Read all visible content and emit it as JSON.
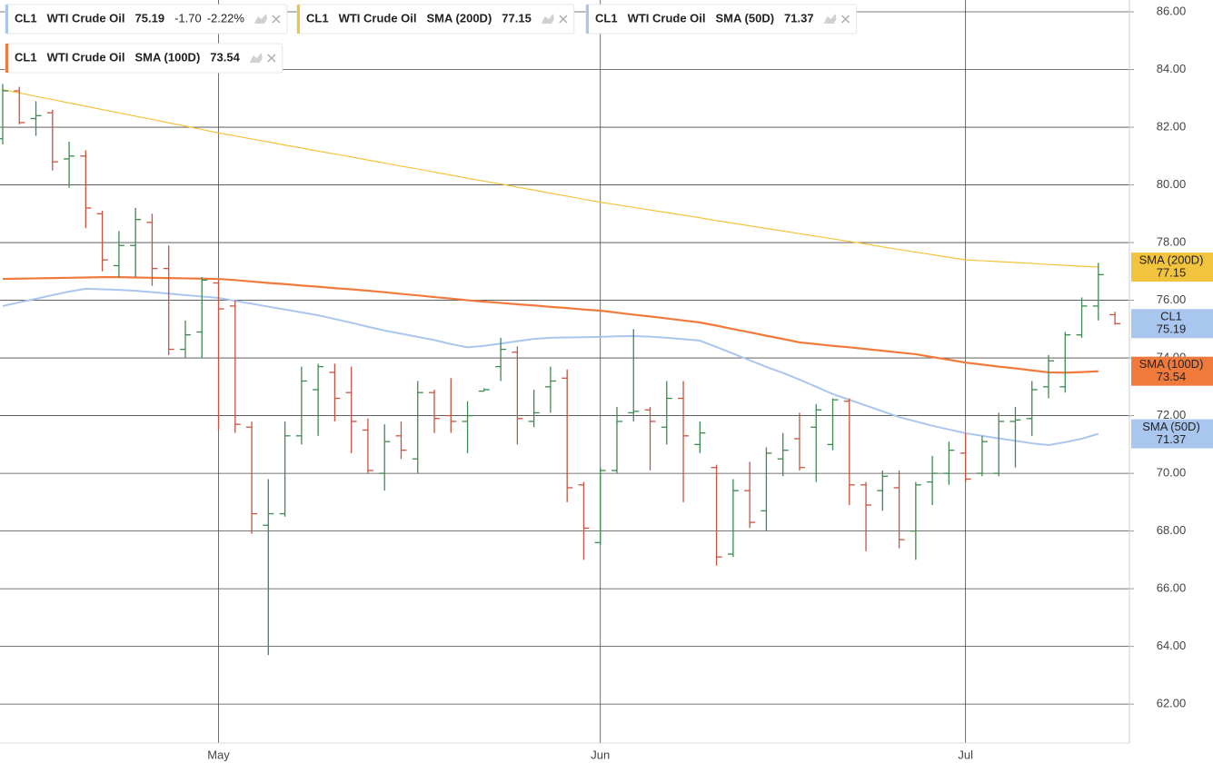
{
  "chart_data": {
    "type": "ohlc",
    "symbol": "CL1",
    "name": "WTI Crude Oil",
    "change": {
      "value": -1.7,
      "label": "-1.70"
    },
    "change_percent": {
      "value": -2.22,
      "label": "-2.22%"
    },
    "categories": [
      null,
      null,
      null,
      null,
      null,
      null,
      null,
      null,
      null,
      null,
      null,
      null,
      null,
      "May",
      null,
      null,
      null,
      null,
      null,
      null,
      null,
      null,
      null,
      null,
      null,
      null,
      null,
      null,
      null,
      null,
      null,
      null,
      null,
      null,
      null,
      null,
      "Jun",
      null,
      null,
      null,
      null,
      null,
      null,
      null,
      null,
      null,
      null,
      null,
      null,
      null,
      null,
      null,
      null,
      null,
      null,
      null,
      null,
      null,
      "Jul",
      null,
      null,
      null,
      null,
      null,
      null,
      null,
      null,
      null
    ],
    "ylim": [
      60.65,
      86.41
    ],
    "yticks": [
      {
        "value": 62,
        "label": "62.00"
      },
      {
        "value": 64,
        "label": "64.00"
      },
      {
        "value": 66,
        "label": "66.00"
      },
      {
        "value": 68,
        "label": "68.00"
      },
      {
        "value": 70,
        "label": "70.00"
      },
      {
        "value": 72,
        "label": "72.00"
      },
      {
        "value": 74,
        "label": "74.00"
      },
      {
        "value": 76,
        "label": "76.00"
      },
      {
        "value": 78,
        "label": "78.00"
      },
      {
        "value": 80,
        "label": "80.00"
      },
      {
        "value": 82,
        "label": "82.00"
      },
      {
        "value": 84,
        "label": "84.00"
      },
      {
        "value": 86,
        "label": "86.00"
      }
    ],
    "grid": true,
    "series": [
      {
        "name": "CL1",
        "kind": "ohlc",
        "color": "#a9c6ee",
        "up_color": "#3d8a4f",
        "down_color": "#c9533f",
        "open": [
          81.6,
          83.26,
          82.3,
          82.5,
          80.9,
          81.0,
          79.0,
          77.2,
          77.9,
          78.7,
          77.1,
          74.3,
          74.9,
          76.6,
          75.8,
          71.6,
          68.2,
          68.6,
          71.3,
          72.9,
          73.5,
          72.8,
          71.5,
          70.0,
          71.3,
          70.5,
          72.8,
          72.0,
          71.8,
          72.85,
          73.7,
          74.2,
          71.8,
          73.0,
          73.3,
          69.6,
          67.6,
          70.1,
          72.1,
          72.2,
          71.6,
          72.6,
          71.0,
          70.2,
          67.2,
          69.4,
          68.7,
          70.5,
          71.2,
          71.6,
          71.0,
          72.5,
          69.6,
          69.4,
          69.5,
          68.0,
          69.7,
          70.0,
          70.7,
          70.0,
          70.0,
          71.8,
          71.9,
          73.0,
          73.0,
          74.8,
          75.8,
          75.5
        ],
        "high": [
          83.5,
          83.4,
          82.9,
          82.6,
          81.5,
          81.2,
          79.1,
          78.4,
          79.2,
          79.0,
          77.9,
          75.3,
          76.8,
          76.7,
          76.0,
          71.8,
          69.8,
          71.8,
          73.7,
          73.8,
          73.8,
          73.7,
          71.9,
          71.7,
          71.8,
          73.2,
          72.9,
          73.3,
          72.5,
          72.95,
          74.7,
          74.4,
          72.9,
          73.7,
          73.6,
          69.7,
          70.2,
          72.3,
          75.0,
          72.3,
          73.2,
          73.2,
          71.8,
          70.3,
          69.8,
          70.4,
          70.9,
          71.4,
          72.1,
          72.4,
          72.6,
          72.6,
          69.7,
          70.1,
          70.1,
          69.7,
          70.6,
          71.1,
          71.4,
          71.3,
          72.1,
          72.3,
          73.2,
          74.1,
          74.9,
          76.1,
          77.3,
          75.6
        ],
        "low": [
          81.4,
          82.1,
          81.7,
          80.5,
          79.9,
          78.5,
          77.0,
          76.8,
          76.8,
          76.5,
          74.1,
          74.0,
          74.0,
          71.5,
          71.4,
          67.9,
          63.7,
          68.5,
          71.0,
          71.3,
          71.8,
          70.7,
          70.0,
          69.4,
          70.5,
          70.0,
          71.4,
          71.4,
          70.7,
          72.85,
          73.2,
          71.0,
          71.6,
          72.1,
          69.0,
          67.0,
          67.5,
          70.0,
          71.8,
          70.1,
          71.0,
          69.0,
          70.7,
          66.8,
          67.1,
          68.1,
          68.0,
          69.9,
          70.1,
          69.7,
          70.8,
          68.9,
          67.3,
          68.7,
          67.4,
          67.0,
          68.9,
          69.6,
          69.7,
          69.9,
          69.9,
          70.2,
          71.3,
          72.6,
          72.8,
          74.7,
          75.3,
          75.15
        ],
        "close": [
          83.26,
          82.16,
          82.4,
          80.8,
          81.0,
          79.2,
          77.4,
          77.9,
          78.8,
          77.1,
          74.3,
          74.8,
          76.7,
          75.7,
          71.7,
          68.6,
          68.6,
          71.3,
          73.2,
          73.7,
          72.6,
          71.8,
          70.1,
          71.1,
          70.8,
          72.8,
          71.9,
          71.8,
          72.0,
          72.9,
          74.3,
          71.9,
          72.1,
          73.2,
          69.5,
          68.1,
          70.1,
          71.8,
          72.15,
          71.8,
          72.6,
          71.3,
          71.4,
          67.1,
          69.4,
          68.3,
          70.7,
          70.8,
          70.2,
          72.2,
          72.55,
          69.6,
          68.9,
          69.9,
          67.7,
          69.6,
          70.0,
          70.8,
          69.8,
          71.1,
          71.8,
          71.85,
          72.9,
          73.9,
          74.8,
          75.8,
          76.89,
          75.19
        ]
      },
      {
        "name": "SMA (200D)",
        "kind": "line",
        "color": "#f2c43d",
        "text_color": "#222222",
        "width": 1.2,
        "values": [
          83.3,
          83.19,
          83.07,
          82.96,
          82.84,
          82.73,
          82.61,
          82.5,
          82.38,
          82.27,
          82.15,
          82.04,
          81.92,
          81.8,
          81.7,
          81.59,
          81.49,
          81.38,
          81.28,
          81.17,
          81.07,
          80.97,
          80.86,
          80.76,
          80.65,
          80.55,
          80.44,
          80.34,
          80.23,
          80.13,
          80.03,
          79.92,
          79.82,
          79.71,
          79.61,
          79.5,
          79.4,
          79.31,
          79.22,
          79.13,
          79.04,
          78.95,
          78.86,
          78.76,
          78.67,
          78.58,
          78.49,
          78.4,
          78.31,
          78.22,
          78.13,
          78.04,
          77.95,
          77.85,
          77.76,
          77.67,
          77.58,
          77.49,
          77.4,
          77.37,
          77.34,
          77.31,
          77.28,
          77.24,
          77.21,
          77.18,
          77.15,
          null
        ]
      },
      {
        "name": "SMA (50D)",
        "kind": "line",
        "color": "#a9c6ee",
        "text_color": "#222222",
        "width": 2,
        "values": [
          75.8,
          75.93,
          76.05,
          76.18,
          76.3,
          76.4,
          76.38,
          76.36,
          76.33,
          76.28,
          76.23,
          76.18,
          76.13,
          76.08,
          75.98,
          75.88,
          75.78,
          75.68,
          75.58,
          75.48,
          75.35,
          75.22,
          75.08,
          74.95,
          74.84,
          74.73,
          74.62,
          74.48,
          74.37,
          74.42,
          74.5,
          74.58,
          74.66,
          74.7,
          74.71,
          74.72,
          74.73,
          74.75,
          74.76,
          74.74,
          74.7,
          74.65,
          74.6,
          74.38,
          74.15,
          73.92,
          73.69,
          73.48,
          73.25,
          73.0,
          72.75,
          72.55,
          72.35,
          72.15,
          71.95,
          71.8,
          71.65,
          71.52,
          71.39,
          71.3,
          71.21,
          71.13,
          71.04,
          70.98,
          71.08,
          71.2,
          71.37,
          null
        ]
      },
      {
        "name": "SMA (100D)",
        "kind": "line",
        "color": "#f07a3c",
        "text_color": "#ffffff",
        "width": 2.2,
        "values": [
          76.74,
          76.75,
          76.76,
          76.77,
          76.78,
          76.79,
          76.8,
          76.8,
          76.79,
          76.78,
          76.77,
          76.76,
          76.75,
          76.74,
          76.7,
          76.65,
          76.6,
          76.56,
          76.51,
          76.47,
          76.42,
          76.38,
          76.33,
          76.28,
          76.22,
          76.17,
          76.11,
          76.06,
          76.0,
          75.95,
          75.91,
          75.86,
          75.82,
          75.77,
          75.73,
          75.68,
          75.64,
          75.57,
          75.5,
          75.44,
          75.37,
          75.3,
          75.23,
          75.12,
          75.0,
          74.89,
          74.77,
          74.66,
          74.54,
          74.48,
          74.42,
          74.37,
          74.31,
          74.25,
          74.19,
          74.13,
          74.03,
          73.94,
          73.84,
          73.77,
          73.7,
          73.64,
          73.57,
          73.5,
          73.49,
          73.51,
          73.54,
          null
        ]
      }
    ]
  }
}
